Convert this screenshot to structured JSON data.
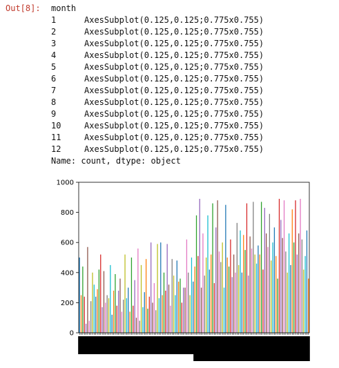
{
  "cell": {
    "prompt": "Out[8]:",
    "header": "month",
    "rows": [
      {
        "index": "1",
        "value": "AxesSubplot(0.125,0.125;0.775x0.755)"
      },
      {
        "index": "2",
        "value": "AxesSubplot(0.125,0.125;0.775x0.755)"
      },
      {
        "index": "3",
        "value": "AxesSubplot(0.125,0.125;0.775x0.755)"
      },
      {
        "index": "4",
        "value": "AxesSubplot(0.125,0.125;0.775x0.755)"
      },
      {
        "index": "5",
        "value": "AxesSubplot(0.125,0.125;0.775x0.755)"
      },
      {
        "index": "6",
        "value": "AxesSubplot(0.125,0.125;0.775x0.755)"
      },
      {
        "index": "7",
        "value": "AxesSubplot(0.125,0.125;0.775x0.755)"
      },
      {
        "index": "8",
        "value": "AxesSubplot(0.125,0.125;0.775x0.755)"
      },
      {
        "index": "9",
        "value": "AxesSubplot(0.125,0.125;0.775x0.755)"
      },
      {
        "index": "10",
        "value": "AxesSubplot(0.125,0.125;0.775x0.755)"
      },
      {
        "index": "11",
        "value": "AxesSubplot(0.125,0.125;0.775x0.755)"
      },
      {
        "index": "12",
        "value": "AxesSubplot(0.125,0.125;0.775x0.755)"
      }
    ],
    "footer": "Name: count, dtype: object"
  },
  "colors": {
    "prompt": "#c0392b",
    "palette": [
      "#1f77b4",
      "#ff7f0e",
      "#2ca02c",
      "#d62728",
      "#9467bd",
      "#8c564b",
      "#e377c2",
      "#7f7f7f",
      "#bcbd22",
      "#17becf"
    ]
  },
  "chart_data": {
    "type": "bar",
    "ylim": [
      0,
      1000
    ],
    "yticks": [
      "0",
      "200",
      "400",
      "600",
      "800",
      "1000"
    ],
    "grid": false,
    "values": [
      500,
      250,
      440,
      240,
      60,
      570,
      80,
      210,
      400,
      320,
      240,
      290,
      420,
      520,
      170,
      410,
      200,
      250,
      230,
      450,
      120,
      280,
      390,
      180,
      280,
      360,
      140,
      220,
      520,
      230,
      300,
      140,
      500,
      180,
      350,
      100,
      560,
      80,
      450,
      170,
      270,
      490,
      160,
      240,
      600,
      200,
      330,
      150,
      590,
      230,
      600,
      250,
      400,
      280,
      590,
      320,
      180,
      490,
      380,
      250,
      480,
      340,
      360,
      200,
      300,
      300,
      620,
      400,
      250,
      500,
      340,
      440,
      780,
      510,
      890,
      300,
      660,
      380,
      500,
      780,
      420,
      520,
      860,
      330,
      700,
      880,
      540,
      470,
      600,
      300,
      850,
      500,
      440,
      620,
      370,
      520,
      400,
      730,
      450,
      680,
      400,
      650,
      550,
      860,
      380,
      640,
      560,
      870,
      520,
      460,
      580,
      520,
      870,
      420,
      830,
      660,
      570,
      790,
      480,
      600,
      700,
      510,
      360,
      890,
      750,
      630,
      880,
      540,
      400,
      660,
      450,
      820,
      600,
      880,
      520,
      660,
      890,
      620,
      420,
      510,
      680,
      360
    ]
  }
}
